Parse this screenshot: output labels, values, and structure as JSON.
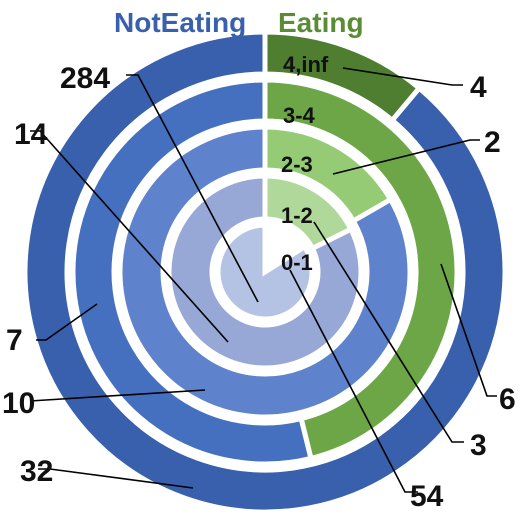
{
  "chart_data": {
    "type": "sunburst",
    "subtitle_left": "NotEating",
    "subtitle_right": "Eating",
    "rings": [
      {
        "label": "0-1",
        "not_eating": 284,
        "eating": 54,
        "not_eating_color": "#B4C3E3",
        "eating_color": "#FFFFFF"
      },
      {
        "label": "1-2",
        "not_eating": 14,
        "eating": 3,
        "not_eating_color": "#97A8D7",
        "eating_color": "#B0D89A"
      },
      {
        "label": "2-3",
        "not_eating": 10,
        "eating": 2,
        "not_eating_color": "#5E82CB",
        "eating_color": "#96CB75"
      },
      {
        "label": "3-4",
        "not_eating": 7,
        "eating": 6,
        "not_eating_color": "#4470BF",
        "eating_color": "#6CA646"
      },
      {
        "label": "4,inf",
        "not_eating": 32,
        "eating": 4,
        "not_eating_color": "#3860AC",
        "eating_color": "#507E31"
      }
    ],
    "colors": {
      "title_not_eating": "#3860AC",
      "title_eating": "#5A8C36"
    }
  }
}
